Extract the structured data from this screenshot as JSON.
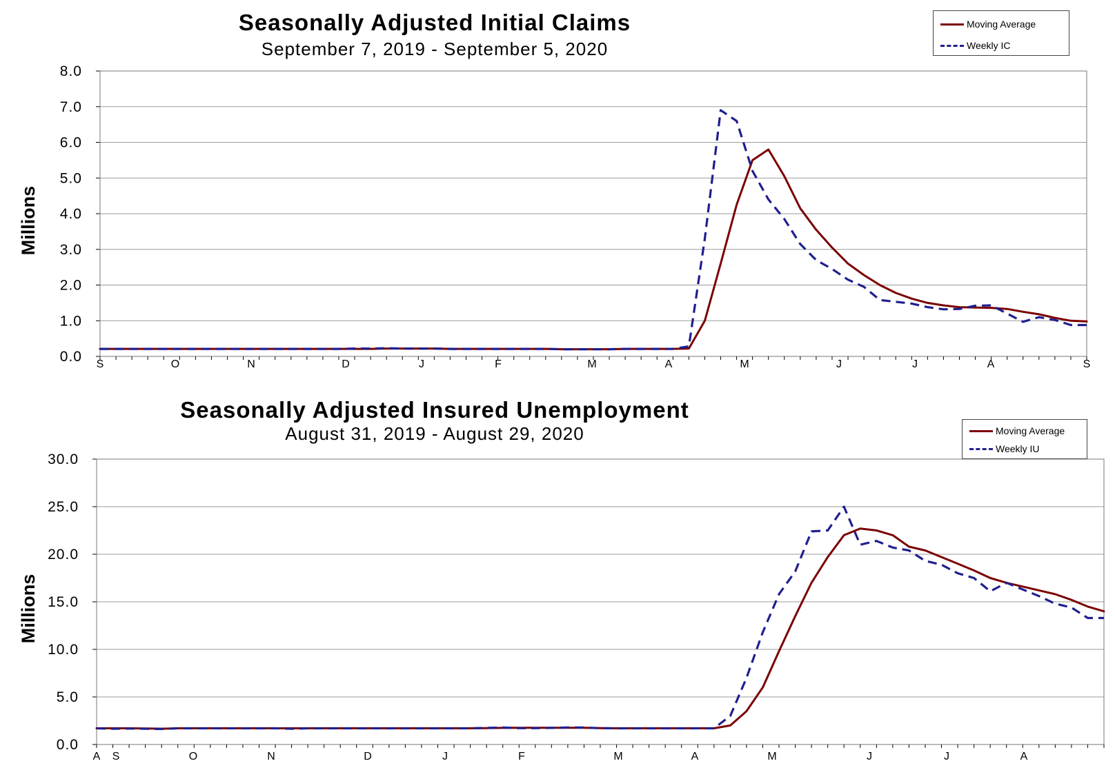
{
  "chart_data": [
    {
      "type": "line",
      "title": "Seasonally Adjusted Initial Claims",
      "subtitle": "September 7, 2019 - September 5, 2020",
      "ylabel": "Millions",
      "ylim": [
        0,
        8
      ],
      "yticks": [
        "0.0",
        "1.0",
        "2.0",
        "3.0",
        "4.0",
        "5.0",
        "6.0",
        "7.0",
        "8.0"
      ],
      "xticks": [
        "S",
        "O",
        "N",
        "D",
        "J",
        "F",
        "M",
        "A",
        "M",
        "J",
        "J",
        "A",
        "S"
      ],
      "grid": true,
      "legend_position": "top-right",
      "series": [
        {
          "name": "Moving Average",
          "color": "#7a0000",
          "style": "solid",
          "values": [
            0.21,
            0.21,
            0.21,
            0.21,
            0.21,
            0.21,
            0.21,
            0.21,
            0.21,
            0.21,
            0.21,
            0.21,
            0.21,
            0.21,
            0.21,
            0.21,
            0.21,
            0.21,
            0.22,
            0.22,
            0.22,
            0.22,
            0.21,
            0.21,
            0.21,
            0.21,
            0.21,
            0.21,
            0.21,
            0.2,
            0.2,
            0.2,
            0.2,
            0.21,
            0.21,
            0.21,
            0.21,
            0.22,
            1.0,
            2.6,
            4.25,
            5.5,
            5.8,
            5.05,
            4.15,
            3.55,
            3.05,
            2.6,
            2.28,
            2.0,
            1.78,
            1.62,
            1.5,
            1.43,
            1.38,
            1.37,
            1.36,
            1.33,
            1.25,
            1.18,
            1.08,
            1.0,
            0.98
          ]
        },
        {
          "name": "Weekly IC",
          "color": "#1f1f8f",
          "style": "dashed",
          "values": [
            0.21,
            0.21,
            0.21,
            0.21,
            0.21,
            0.21,
            0.21,
            0.21,
            0.21,
            0.21,
            0.21,
            0.21,
            0.21,
            0.21,
            0.21,
            0.21,
            0.22,
            0.22,
            0.23,
            0.22,
            0.22,
            0.22,
            0.21,
            0.21,
            0.21,
            0.21,
            0.21,
            0.21,
            0.21,
            0.2,
            0.2,
            0.2,
            0.2,
            0.21,
            0.21,
            0.21,
            0.21,
            0.28,
            3.3,
            6.9,
            6.6,
            5.2,
            4.4,
            3.85,
            3.15,
            2.7,
            2.45,
            2.15,
            1.95,
            1.58,
            1.53,
            1.48,
            1.38,
            1.32,
            1.33,
            1.42,
            1.43,
            1.2,
            0.97,
            1.1,
            1.02,
            0.88,
            0.88
          ]
        }
      ]
    },
    {
      "type": "line",
      "title": "Seasonally Adjusted Insured Unemployment",
      "subtitle": "August 31, 2019 - August 29, 2020",
      "ylabel": "Millions",
      "ylim": [
        0,
        30
      ],
      "yticks": [
        "0.0",
        "5.0",
        "10.0",
        "15.0",
        "20.0",
        "25.0",
        "30.0"
      ],
      "xticks": [
        "A",
        "S",
        "O",
        "N",
        "D",
        "J",
        "F",
        "M",
        "A",
        "M",
        "J",
        "J",
        "A"
      ],
      "grid": true,
      "legend_position": "top-right",
      "series": [
        {
          "name": "Moving Average",
          "color": "#7a0000",
          "style": "solid",
          "values": [
            1.7,
            1.7,
            1.7,
            1.68,
            1.66,
            1.7,
            1.7,
            1.7,
            1.7,
            1.7,
            1.7,
            1.7,
            1.7,
            1.7,
            1.7,
            1.7,
            1.7,
            1.7,
            1.7,
            1.7,
            1.7,
            1.7,
            1.7,
            1.7,
            1.72,
            1.75,
            1.76,
            1.76,
            1.76,
            1.76,
            1.76,
            1.72,
            1.7,
            1.7,
            1.7,
            1.7,
            1.7,
            1.7,
            1.7,
            2.0,
            3.5,
            6.0,
            9.8,
            13.5,
            17.0,
            19.7,
            22.0,
            22.7,
            22.5,
            22.0,
            20.8,
            20.4,
            19.7,
            19.0,
            18.3,
            17.5,
            17.0,
            16.6,
            16.2,
            15.8,
            15.2,
            14.5,
            14.0
          ]
        },
        {
          "name": "Weekly IU",
          "color": "#1f1f8f",
          "style": "dashed",
          "values": [
            1.7,
            1.65,
            1.68,
            1.65,
            1.63,
            1.7,
            1.7,
            1.7,
            1.7,
            1.7,
            1.7,
            1.7,
            1.65,
            1.7,
            1.7,
            1.7,
            1.7,
            1.7,
            1.7,
            1.7,
            1.7,
            1.7,
            1.7,
            1.7,
            1.75,
            1.78,
            1.72,
            1.72,
            1.75,
            1.78,
            1.78,
            1.72,
            1.7,
            1.7,
            1.7,
            1.7,
            1.7,
            1.7,
            1.7,
            3.0,
            7.0,
            11.8,
            15.8,
            18.2,
            22.4,
            22.5,
            25.0,
            21.0,
            21.4,
            20.7,
            20.4,
            19.3,
            18.9,
            18.0,
            17.5,
            16.1,
            17.0,
            16.3,
            15.6,
            14.8,
            14.4,
            13.3,
            13.3
          ]
        }
      ]
    }
  ]
}
